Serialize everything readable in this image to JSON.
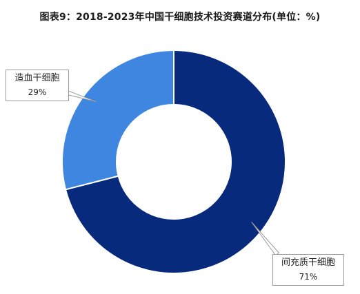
{
  "title": "图表9：2018-2023年中国干细胞技术投资赛道分布(单位：%)",
  "chart_data": {
    "type": "pie",
    "variant": "donut",
    "title": "图表9：2018-2023年中国干细胞技术投资赛道分布(单位：%)",
    "categories": [
      "间充质干细胞",
      "造血干细胞"
    ],
    "values": [
      71,
      29
    ],
    "value_labels": [
      "71%",
      "29%"
    ],
    "colors": [
      "#082a7c",
      "#3f86e0"
    ]
  }
}
